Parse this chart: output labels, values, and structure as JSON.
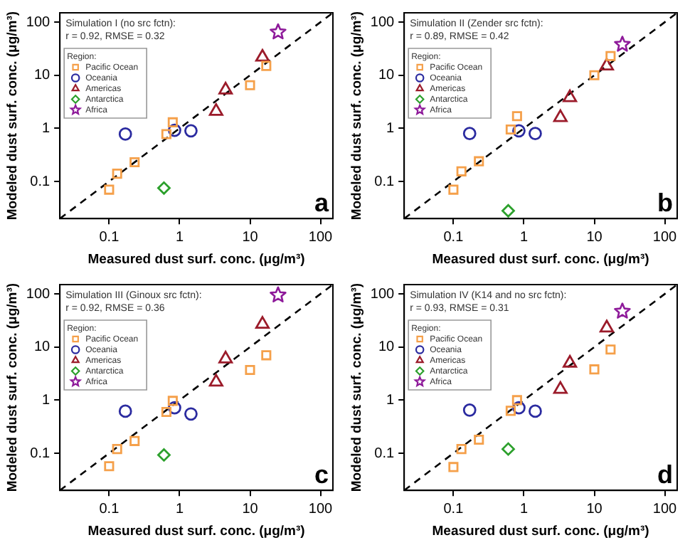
{
  "chart_data": [
    {
      "type": "scatter",
      "xlabel": "Measured dust surf. conc. (μg/m³)",
      "ylabel": "Modeled dust surf. conc. (μg/m³)",
      "legend_title": "Region:",
      "legend": "top left",
      "log": "xy",
      "xlim": [
        0.02,
        150
      ],
      "ylim": [
        0.02,
        150
      ],
      "xticks": [
        0.1,
        1,
        10,
        100
      ],
      "yticks": [
        0.1,
        1,
        10,
        100
      ],
      "grid": false,
      "annotations": [
        "Simulation I (no src fctn):",
        "r = 0.92, RMSE = 0.32",
        "a"
      ],
      "series": [
        {
          "type": "line",
          "x": [
            0.02,
            150
          ],
          "values": [
            0.02,
            150
          ],
          "color": "#000000",
          "line_style": "dashed",
          "marker": "none"
        },
        {
          "name": "Pacific Ocean",
          "color": "#f5a04a",
          "marker": "square",
          "x": [
            0.1,
            0.13,
            0.23,
            0.65,
            0.8,
            10,
            17
          ],
          "values": [
            0.07,
            0.14,
            0.23,
            0.78,
            1.3,
            6.5,
            15
          ]
        },
        {
          "name": "Oceania",
          "color": "#2b2ba0",
          "marker": "circle",
          "x": [
            0.17,
            0.85,
            1.45
          ],
          "values": [
            0.78,
            0.92,
            0.9
          ]
        },
        {
          "name": "Americas",
          "color": "#9b1b2a",
          "marker": "triangle",
          "x": [
            3.3,
            4.5,
            15
          ],
          "values": [
            2.1,
            5.3,
            22
          ]
        },
        {
          "name": "Antarctica",
          "color": "#2ca02c",
          "marker": "diamond",
          "x": [
            0.6
          ],
          "values": [
            0.075
          ]
        },
        {
          "name": "Africa",
          "color": "#8e1a9a",
          "marker": "star",
          "x": [
            25
          ],
          "values": [
            65
          ]
        }
      ]
    },
    {
      "type": "scatter",
      "xlabel": "Measured dust surf. conc. (μg/m³)",
      "ylabel": "Modeled dust surf. conc. (μg/m³)",
      "legend_title": "Region:",
      "legend": "top left",
      "log": "xy",
      "xlim": [
        0.02,
        150
      ],
      "ylim": [
        0.02,
        150
      ],
      "xticks": [
        0.1,
        1,
        10,
        100
      ],
      "yticks": [
        0.1,
        1,
        10,
        100
      ],
      "grid": false,
      "annotations": [
        "Simulation II (Zender src fctn):",
        "r = 0.89, RMSE = 0.42",
        "b"
      ],
      "series": [
        {
          "type": "line",
          "x": [
            0.02,
            150
          ],
          "values": [
            0.02,
            150
          ],
          "color": "#000000",
          "line_style": "dashed",
          "marker": "none"
        },
        {
          "name": "Pacific Ocean",
          "color": "#f5a04a",
          "marker": "square",
          "x": [
            0.1,
            0.13,
            0.23,
            0.65,
            0.8,
            10,
            17
          ],
          "values": [
            0.07,
            0.155,
            0.24,
            0.95,
            1.7,
            10,
            23
          ]
        },
        {
          "name": "Oceania",
          "color": "#2b2ba0",
          "marker": "circle",
          "x": [
            0.17,
            0.85,
            1.45
          ],
          "values": [
            0.8,
            0.9,
            0.8
          ]
        },
        {
          "name": "Americas",
          "color": "#9b1b2a",
          "marker": "triangle",
          "x": [
            3.3,
            4.5,
            15
          ],
          "values": [
            1.6,
            3.8,
            15
          ]
        },
        {
          "name": "Antarctica",
          "color": "#2ca02c",
          "marker": "diamond",
          "x": [
            0.6
          ],
          "values": [
            0.028
          ]
        },
        {
          "name": "Africa",
          "color": "#8e1a9a",
          "marker": "star",
          "x": [
            25
          ],
          "values": [
            38
          ]
        }
      ]
    },
    {
      "type": "scatter",
      "xlabel": "Measured dust surf. conc. (μg/m³)",
      "ylabel": "Modeled dust surf. conc. (μg/m³)",
      "legend_title": "Region:",
      "legend": "top left",
      "log": "xy",
      "xlim": [
        0.02,
        150
      ],
      "ylim": [
        0.02,
        150
      ],
      "xticks": [
        0.1,
        1,
        10,
        100
      ],
      "yticks": [
        0.1,
        1,
        10,
        100
      ],
      "grid": false,
      "annotations": [
        "Simulation III (Ginoux src fctn):",
        "r = 0.92, RMSE = 0.36",
        "c"
      ],
      "series": [
        {
          "type": "line",
          "x": [
            0.02,
            150
          ],
          "values": [
            0.02,
            150
          ],
          "color": "#000000",
          "line_style": "dashed",
          "marker": "none"
        },
        {
          "name": "Pacific Ocean",
          "color": "#f5a04a",
          "marker": "square",
          "x": [
            0.1,
            0.13,
            0.23,
            0.65,
            0.8,
            10,
            17
          ],
          "values": [
            0.057,
            0.12,
            0.17,
            0.6,
            0.97,
            3.7,
            7
          ]
        },
        {
          "name": "Oceania",
          "color": "#2b2ba0",
          "marker": "circle",
          "x": [
            0.17,
            0.85,
            1.45
          ],
          "values": [
            0.62,
            0.72,
            0.55
          ]
        },
        {
          "name": "Americas",
          "color": "#9b1b2a",
          "marker": "triangle",
          "x": [
            3.3,
            4.5,
            15
          ],
          "values": [
            2.2,
            6,
            27
          ]
        },
        {
          "name": "Antarctica",
          "color": "#2ca02c",
          "marker": "diamond",
          "x": [
            0.6
          ],
          "values": [
            0.093
          ]
        },
        {
          "name": "Africa",
          "color": "#8e1a9a",
          "marker": "star",
          "x": [
            25
          ],
          "values": [
            95
          ]
        }
      ]
    },
    {
      "type": "scatter",
      "xlabel": "Measured dust surf. conc. (μg/m³)",
      "ylabel": "Modeled dust surf. conc. (μg/m³)",
      "legend_title": "Region:",
      "legend": "top left",
      "log": "xy",
      "xlim": [
        0.02,
        150
      ],
      "ylim": [
        0.02,
        150
      ],
      "xticks": [
        0.1,
        1,
        10,
        100
      ],
      "yticks": [
        0.1,
        1,
        10,
        100
      ],
      "grid": false,
      "annotations": [
        "Simulation IV (K14 and no src fctn):",
        "r = 0.93, RMSE = 0.31",
        "d"
      ],
      "series": [
        {
          "type": "line",
          "x": [
            0.02,
            150
          ],
          "values": [
            0.02,
            150
          ],
          "color": "#000000",
          "line_style": "dashed",
          "marker": "none"
        },
        {
          "name": "Pacific Ocean",
          "color": "#f5a04a",
          "marker": "square",
          "x": [
            0.1,
            0.13,
            0.23,
            0.65,
            0.8,
            10,
            17
          ],
          "values": [
            0.055,
            0.12,
            0.18,
            0.63,
            1.0,
            3.8,
            9
          ]
        },
        {
          "name": "Oceania",
          "color": "#2b2ba0",
          "marker": "circle",
          "x": [
            0.17,
            0.85,
            1.45
          ],
          "values": [
            0.65,
            0.72,
            0.62
          ]
        },
        {
          "name": "Americas",
          "color": "#9b1b2a",
          "marker": "triangle",
          "x": [
            3.3,
            4.5,
            15
          ],
          "values": [
            1.6,
            5,
            23
          ]
        },
        {
          "name": "Antarctica",
          "color": "#2ca02c",
          "marker": "diamond",
          "x": [
            0.6
          ],
          "values": [
            0.12
          ]
        },
        {
          "name": "Africa",
          "color": "#8e1a9a",
          "marker": "star",
          "x": [
            25
          ],
          "values": [
            47
          ]
        }
      ]
    }
  ]
}
